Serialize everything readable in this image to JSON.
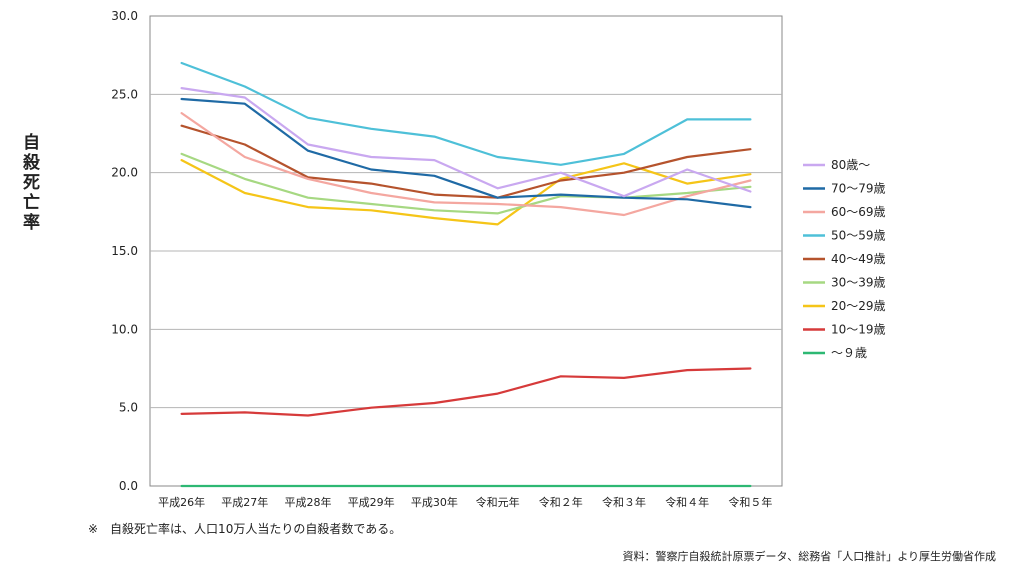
{
  "chart_data": {
    "type": "line",
    "ylabel": "自殺死亡率",
    "categories": [
      "平成26年",
      "平成27年",
      "平成28年",
      "平成29年",
      "平成30年",
      "令和元年",
      "令和２年",
      "令和３年",
      "令和４年",
      "令和５年"
    ],
    "ylim": [
      0,
      30
    ],
    "yticks": [
      "0.0",
      "5.0",
      "10.0",
      "15.0",
      "20.0",
      "25.0",
      "30.0"
    ],
    "grid": true,
    "legend_position": "right",
    "series": [
      {
        "name": "80歳～",
        "color": "#c9a8f0",
        "values": [
          25.4,
          24.8,
          21.8,
          21.0,
          20.8,
          19.0,
          20.0,
          18.5,
          20.2,
          18.8
        ]
      },
      {
        "name": "70～79歳",
        "color": "#1f6aa5",
        "values": [
          24.7,
          24.4,
          21.4,
          20.2,
          19.8,
          18.4,
          18.6,
          18.4,
          18.3,
          17.8
        ]
      },
      {
        "name": "60～69歳",
        "color": "#f4a7a0",
        "values": [
          23.8,
          21.0,
          19.6,
          18.7,
          18.1,
          18.0,
          17.8,
          17.3,
          18.5,
          19.5
        ]
      },
      {
        "name": "50～59歳",
        "color": "#4ec0d8",
        "values": [
          27.0,
          25.5,
          23.5,
          22.8,
          22.3,
          21.0,
          20.5,
          21.2,
          23.4,
          23.4
        ]
      },
      {
        "name": "40～49歳",
        "color": "#b5532d",
        "values": [
          23.0,
          21.8,
          19.7,
          19.3,
          18.6,
          18.4,
          19.5,
          20.0,
          21.0,
          21.5
        ]
      },
      {
        "name": "30～39歳",
        "color": "#a6d882",
        "values": [
          21.2,
          19.6,
          18.4,
          18.0,
          17.6,
          17.4,
          18.5,
          18.4,
          18.7,
          19.1
        ]
      },
      {
        "name": "20～29歳",
        "color": "#f5c518",
        "values": [
          20.8,
          18.7,
          17.8,
          17.6,
          17.1,
          16.7,
          19.6,
          20.6,
          19.3,
          19.9
        ]
      },
      {
        "name": "10～19歳",
        "color": "#d63a3a",
        "values": [
          4.6,
          4.7,
          4.5,
          5.0,
          5.3,
          5.9,
          7.0,
          6.9,
          7.4,
          7.5
        ]
      },
      {
        "name": "～９歳",
        "color": "#2db873",
        "values": [
          0.0,
          0.0,
          0.0,
          0.0,
          0.0,
          0.0,
          0.0,
          0.0,
          0.0,
          0.0
        ]
      }
    ]
  },
  "note": "※　自殺死亡率は、人口10万人当たりの自殺者数である。",
  "source": "資料：警察庁自殺統計原票データ、総務省「人口推計」より厚生労働省作成"
}
